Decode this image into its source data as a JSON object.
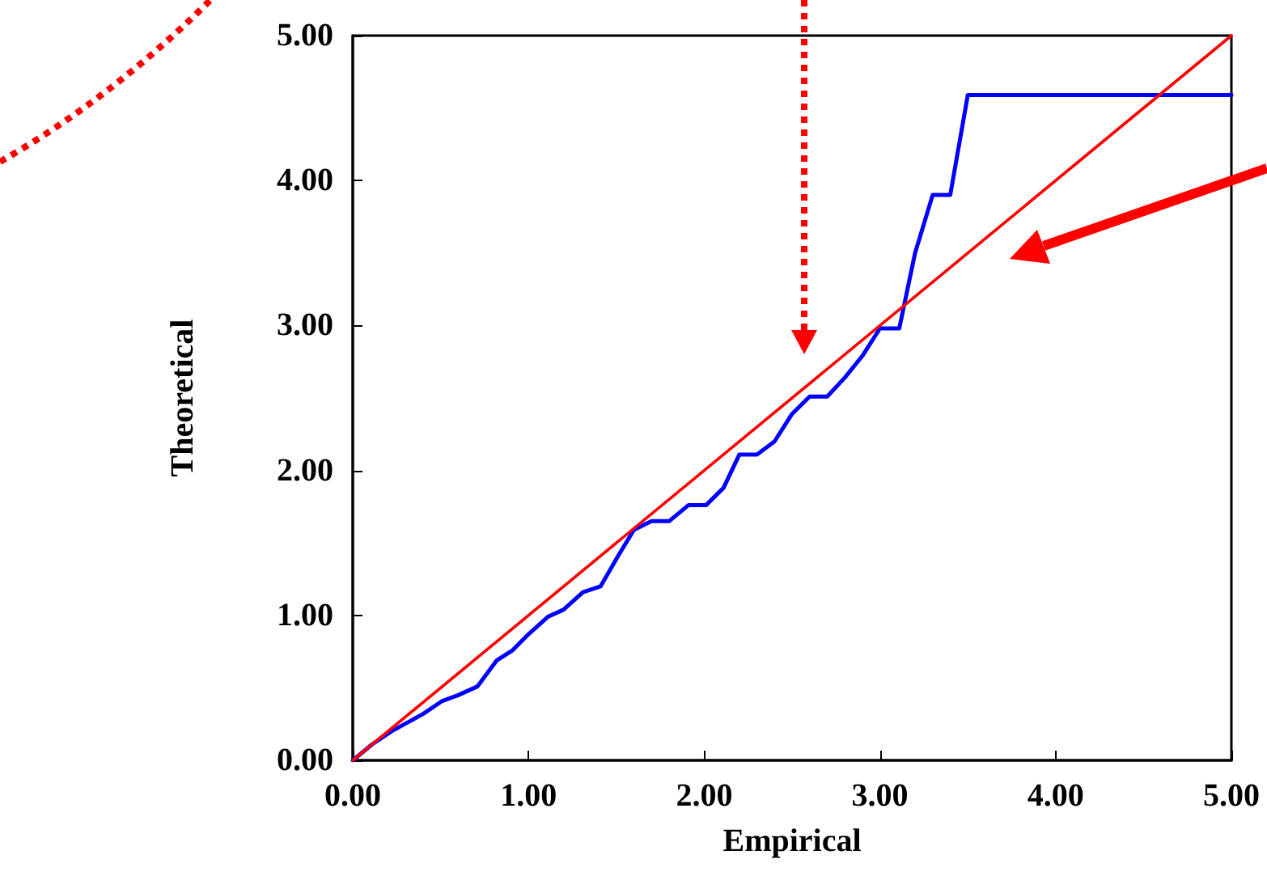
{
  "chart_data": {
    "type": "line",
    "xlabel": "Empirical",
    "ylabel": "Theoretical",
    "xlim": [
      0,
      5
    ],
    "ylim": [
      0,
      5
    ],
    "xticks": [
      {
        "value": 0,
        "label": "0.00"
      },
      {
        "value": 1,
        "label": "1.00"
      },
      {
        "value": 2,
        "label": "2.00"
      },
      {
        "value": 3,
        "label": "3.00"
      },
      {
        "value": 4,
        "label": "4.00"
      },
      {
        "value": 5,
        "label": "5.00"
      }
    ],
    "yticks": [
      {
        "value": 0,
        "label": "0.00"
      },
      {
        "value": 1,
        "label": "1.00"
      },
      {
        "value": 2,
        "label": "2.00"
      },
      {
        "value": 3,
        "label": "3.00"
      },
      {
        "value": 4,
        "label": "4.00"
      },
      {
        "value": 5,
        "label": "5.00"
      }
    ],
    "series": [
      {
        "color": "#0000ff",
        "x": [
          0,
          0.11,
          0.22,
          0.31,
          0.4,
          0.51,
          0.6,
          0.71,
          0.82,
          0.91,
          1.0,
          1.11,
          1.2,
          1.31,
          1.41,
          1.51,
          1.6,
          1.7,
          1.8,
          1.91,
          2.01,
          2.11,
          2.2,
          2.3,
          2.4,
          2.5,
          2.6,
          2.7,
          2.8,
          2.9,
          3.0,
          3.11,
          3.2,
          3.3,
          3.4,
          3.5,
          5.0
        ],
        "values": [
          0,
          0.11,
          0.2,
          0.26,
          0.32,
          0.41,
          0.45,
          0.51,
          0.69,
          0.76,
          0.87,
          0.99,
          1.04,
          1.16,
          1.2,
          1.41,
          1.59,
          1.65,
          1.65,
          1.76,
          1.76,
          1.88,
          2.11,
          2.11,
          2.2,
          2.39,
          2.51,
          2.51,
          2.64,
          2.79,
          2.98,
          2.98,
          3.5,
          3.9,
          3.9,
          4.59,
          4.59
        ]
      },
      {
        "color": "#ff0000",
        "x": [
          0,
          5
        ],
        "values": [
          0,
          5
        ]
      }
    ],
    "grid": false,
    "marker": "none",
    "line_style": "solid"
  }
}
